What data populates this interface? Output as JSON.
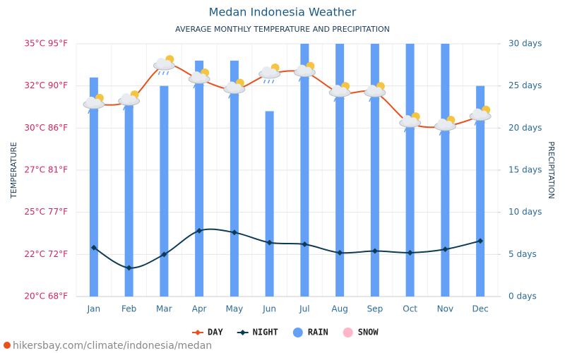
{
  "chart_data": {
    "type": "combo",
    "title": "Medan Indonesia Weather",
    "subtitle": "AVERAGE MONTHLY TEMPERATURE AND PRECIPITATION",
    "ylabel": "TEMPERATURE",
    "y2label": "PRECIPITATION",
    "source": "hikersbay.com/climate/indonesia/medan",
    "categories": [
      "Jan",
      "Feb",
      "Mar",
      "Apr",
      "May",
      "Jun",
      "Jul",
      "Aug",
      "Sep",
      "Oct",
      "Nov",
      "Dec"
    ],
    "series": [
      {
        "name": "DAY",
        "kind": "line",
        "axis": "y",
        "color": "#e8501c",
        "values": [
          31.4,
          31.6,
          33.7,
          32.9,
          32.3,
          33.2,
          33.3,
          32.1,
          32.1,
          30.3,
          30.1,
          30.7
        ]
      },
      {
        "name": "NIGHT",
        "kind": "line",
        "axis": "y",
        "color": "#0d3a55",
        "values": [
          22.9,
          21.7,
          22.5,
          23.9,
          23.8,
          23.2,
          23.1,
          22.6,
          22.7,
          22.6,
          22.8,
          23.3
        ]
      },
      {
        "name": "RAIN",
        "kind": "bar",
        "axis": "y2",
        "color": "#64a0f5",
        "values": [
          26,
          23,
          25,
          28,
          28,
          22,
          30,
          30,
          30,
          30,
          30,
          25
        ]
      },
      {
        "name": "SNOW",
        "kind": "bar",
        "axis": "y2",
        "color": "#ffb6c8",
        "values": [
          0,
          0,
          0,
          0,
          0,
          0,
          0,
          0,
          0,
          0,
          0,
          0
        ]
      }
    ],
    "ylim": [
      20,
      35
    ],
    "yticks": [
      {
        "value": 20,
        "label": "20°C 68°F"
      },
      {
        "value": 22.5,
        "label": "22°C 72°F"
      },
      {
        "value": 25,
        "label": "25°C 77°F"
      },
      {
        "value": 27.5,
        "label": "27°C 81°F"
      },
      {
        "value": 30,
        "label": "30°C 86°F"
      },
      {
        "value": 32.5,
        "label": "32°C 90°F"
      },
      {
        "value": 35,
        "label": "35°C 95°F"
      }
    ],
    "y2lim": [
      0,
      30
    ],
    "y2ticks": [
      {
        "value": 0,
        "label": "0 days"
      },
      {
        "value": 5,
        "label": "5 days"
      },
      {
        "value": 10,
        "label": "10 days"
      },
      {
        "value": 15,
        "label": "15 days"
      },
      {
        "value": 20,
        "label": "20 days"
      },
      {
        "value": 25,
        "label": "25 days"
      },
      {
        "value": 30,
        "label": "30 days"
      }
    ],
    "grid": true
  }
}
